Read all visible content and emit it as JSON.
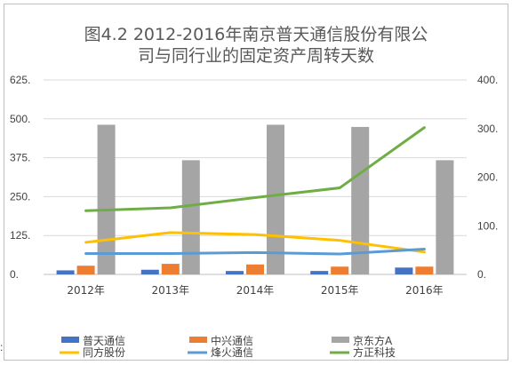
{
  "stray_mark": ":",
  "chart_data": {
    "type": "bar+line",
    "title_lines": [
      "图4.2 2012-2016年南京普天通信股份有限公",
      "司与同行业的固定资产周转天数"
    ],
    "categories": [
      "2012年",
      "2013年",
      "2014年",
      "2015年",
      "2016年"
    ],
    "left_axis": {
      "ticks": [
        "0.",
        "125.",
        "250.",
        "375.",
        "500.",
        "625."
      ],
      "ylim": [
        0,
        625
      ]
    },
    "right_axis": {
      "ticks": [
        "0.",
        "100.",
        "200.",
        "300.",
        "400."
      ],
      "ylim": [
        0,
        400
      ]
    },
    "grid": true,
    "legend_position": "bottom",
    "bar_series": [
      {
        "name": "普天通信",
        "color": "#4472C4",
        "values": [
          13,
          15,
          11,
          11,
          22
        ]
      },
      {
        "name": "中兴通信",
        "color": "#ED7D31",
        "values": [
          28,
          34,
          32,
          25,
          25
        ]
      },
      {
        "name": "京东方A",
        "color": "#A5A5A5",
        "values": [
          481,
          367,
          481,
          474,
          367
        ]
      }
    ],
    "line_series": [
      {
        "name": "同方股份",
        "color": "#FFC000",
        "axis": "right",
        "values": [
          66,
          86,
          82,
          70,
          46
        ]
      },
      {
        "name": "烽火通信",
        "color": "#5B9BD5",
        "axis": "right",
        "values": [
          43,
          43,
          45,
          42,
          52
        ]
      },
      {
        "name": "方正科技",
        "color": "#70AD47",
        "axis": "right",
        "values": [
          131,
          137,
          158,
          178,
          302
        ]
      }
    ]
  }
}
